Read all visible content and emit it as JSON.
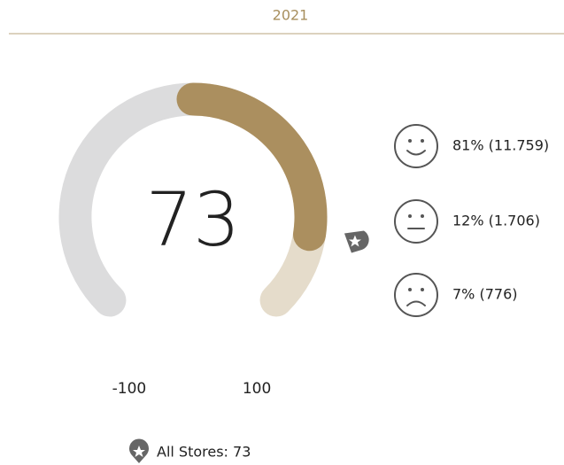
{
  "chart_data": {
    "type": "gauge",
    "title": "2021",
    "value": 73,
    "ylim": [
      -100,
      100
    ],
    "yticks": [
      -100,
      100
    ],
    "color": "#ab8f5f",
    "track_negative_color": "#dcdcdd",
    "track_positive_color": "#e5dccb",
    "benchmark": {
      "label": "All Stores: 73",
      "value": 73
    },
    "breakdown": [
      {
        "face": "happy",
        "label": "81% (11.759)"
      },
      {
        "face": "neutral",
        "label": "12% (1.706)"
      },
      {
        "face": "sad",
        "label": "7% (776)"
      }
    ]
  }
}
